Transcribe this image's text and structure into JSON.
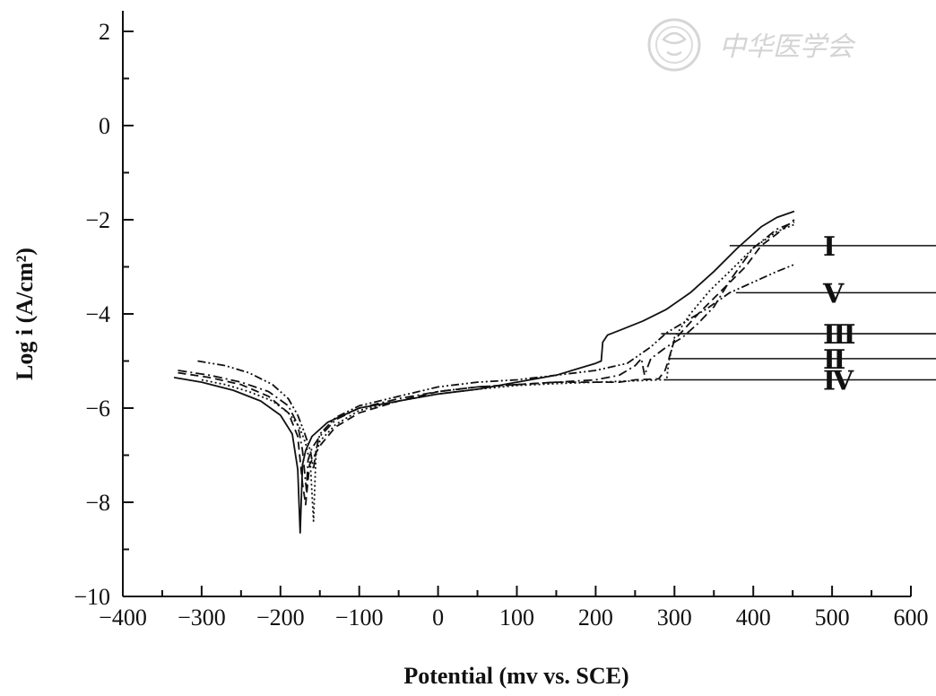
{
  "watermark": {
    "text": "中华医学会",
    "color": "#d0d0d0"
  },
  "chart_data": {
    "type": "line",
    "title": "",
    "xlabel": "Potential (mv vs. SCE)",
    "ylabel": "Log i (A/cm²)",
    "xlim": [
      -400,
      600
    ],
    "ylim": [
      -10,
      2
    ],
    "xticks": [
      -400,
      -300,
      -200,
      -100,
      0,
      100,
      200,
      300,
      400,
      500,
      600
    ],
    "yticks": [
      -10,
      -8,
      -6,
      -4,
      -2,
      0,
      2
    ],
    "xtick_labels": [
      "−400",
      "−300",
      "−200",
      "−100",
      "0",
      "100",
      "200",
      "300",
      "400",
      "500",
      "600"
    ],
    "ytick_labels": [
      "−10",
      "−8",
      "−6",
      "−4",
      "−2",
      "0",
      "2"
    ],
    "grid": false,
    "series": [
      {
        "name": "Ⅰ",
        "dash": "solid",
        "x": [
          -335,
          -300,
          -260,
          -225,
          -200,
          -185,
          -178,
          -175,
          -172,
          -168,
          -160,
          -140,
          -120,
          -100,
          -50,
          0,
          50,
          100,
          150,
          180,
          200,
          207,
          209,
          215,
          230,
          260,
          290,
          320,
          350,
          380,
          410,
          430,
          452
        ],
        "y": [
          -5.35,
          -5.45,
          -5.62,
          -5.85,
          -6.15,
          -6.55,
          -7.3,
          -8.65,
          -7.2,
          -6.9,
          -6.6,
          -6.3,
          -6.15,
          -6.0,
          -5.85,
          -5.7,
          -5.6,
          -5.45,
          -5.3,
          -5.15,
          -5.05,
          -5.0,
          -4.6,
          -4.45,
          -4.35,
          -4.15,
          -3.9,
          -3.55,
          -3.1,
          -2.6,
          -2.15,
          -1.95,
          -1.82
        ],
        "label_at": [
          370,
          -2.55
        ],
        "label_pos": [
          910,
          -2.55
        ]
      },
      {
        "name": "Ⅱ",
        "dash": "dash",
        "x": [
          -330,
          -290,
          -250,
          -215,
          -190,
          -178,
          -172,
          -168,
          -163,
          -150,
          -130,
          -100,
          -50,
          0,
          50,
          100,
          150,
          200,
          230,
          250,
          280,
          288,
          292,
          300,
          330,
          360,
          390,
          410,
          430,
          452
        ],
        "y": [
          -5.25,
          -5.35,
          -5.5,
          -5.75,
          -6.1,
          -6.6,
          -7.6,
          -8.05,
          -7.2,
          -6.8,
          -6.4,
          -6.1,
          -5.85,
          -5.65,
          -5.55,
          -5.5,
          -5.45,
          -5.45,
          -5.45,
          -5.4,
          -5.38,
          -5.2,
          -5.0,
          -4.55,
          -4.0,
          -3.5,
          -3.0,
          -2.55,
          -2.3,
          -2.0
        ],
        "label_at": [
          293,
          -4.95
        ],
        "label_pos": [
          910,
          -4.95
        ]
      },
      {
        "name": "Ⅲ",
        "dash": "dashdot",
        "x": [
          -330,
          -290,
          -250,
          -215,
          -190,
          -178,
          -172,
          -167,
          -165,
          -160,
          -150,
          -130,
          -100,
          -50,
          0,
          50,
          100,
          150,
          200,
          230,
          250,
          258,
          262,
          270,
          290,
          310,
          330,
          350,
          370,
          400,
          430,
          452
        ],
        "y": [
          -5.2,
          -5.3,
          -5.45,
          -5.65,
          -5.95,
          -6.35,
          -6.9,
          -7.75,
          -7.1,
          -6.85,
          -6.6,
          -6.25,
          -6.0,
          -5.8,
          -5.65,
          -5.55,
          -5.5,
          -5.45,
          -5.4,
          -5.3,
          -5.1,
          -4.95,
          -5.3,
          -4.95,
          -4.7,
          -4.5,
          -4.2,
          -3.85,
          -3.3,
          -2.6,
          -2.2,
          -2.05
        ],
        "label_at": [
          283,
          -4.42
        ],
        "label_pos": [
          910,
          -4.42
        ]
      },
      {
        "name": "Ⅳ",
        "dash": "dot",
        "x": [
          -300,
          -270,
          -240,
          -210,
          -190,
          -176,
          -168,
          -162,
          -158,
          -155,
          -150,
          -130,
          -100,
          -50,
          0,
          50,
          100,
          150,
          200,
          250,
          280,
          290,
          293,
          300,
          320,
          345,
          370,
          400,
          430,
          452
        ],
        "y": [
          -5.4,
          -5.5,
          -5.65,
          -5.85,
          -6.1,
          -6.4,
          -6.75,
          -7.2,
          -8.4,
          -7.0,
          -6.7,
          -6.35,
          -6.05,
          -5.85,
          -5.7,
          -5.6,
          -5.52,
          -5.48,
          -5.45,
          -5.42,
          -5.4,
          -5.4,
          -5.0,
          -4.5,
          -4.0,
          -3.5,
          -3.1,
          -2.6,
          -2.25,
          -2.1
        ],
        "label_at": [
          288,
          -5.4
        ],
        "label_pos": [
          910,
          -5.4
        ]
      },
      {
        "name": "Ⅴ",
        "dash": "dashdotdot",
        "x": [
          -305,
          -270,
          -240,
          -210,
          -190,
          -178,
          -170,
          -162,
          -158,
          -155,
          -150,
          -130,
          -100,
          -50,
          0,
          50,
          100,
          150,
          200,
          240,
          270,
          290,
          310,
          340,
          370,
          390,
          410,
          430,
          452
        ],
        "y": [
          -5.0,
          -5.1,
          -5.25,
          -5.5,
          -5.8,
          -6.15,
          -6.5,
          -6.9,
          -7.3,
          -6.9,
          -6.55,
          -6.2,
          -5.95,
          -5.75,
          -5.55,
          -5.45,
          -5.4,
          -5.3,
          -5.2,
          -5.05,
          -4.7,
          -4.4,
          -4.2,
          -3.9,
          -3.55,
          -3.4,
          -3.25,
          -3.1,
          -2.95
        ],
        "label_at": [
          378,
          -3.55
        ],
        "label_pos": [
          910,
          -3.55
        ]
      }
    ]
  }
}
